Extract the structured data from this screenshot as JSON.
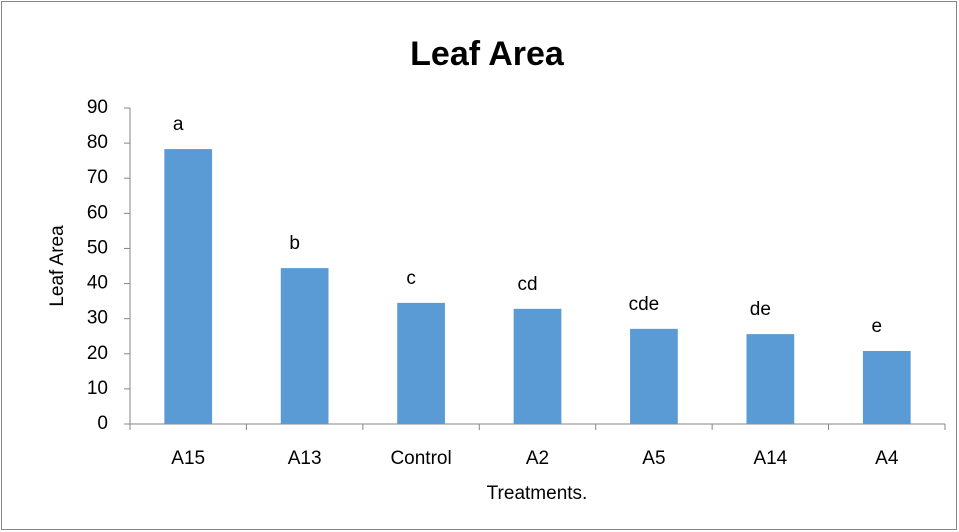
{
  "chart_data": {
    "type": "bar",
    "title": "Leaf Area",
    "x_label": "Treatments.",
    "y_label": "Leaf Area",
    "categories": [
      "A15",
      "A13",
      "Control",
      "A2",
      "A5",
      "A14",
      "A4"
    ],
    "values": [
      78.3,
      44.4,
      34.5,
      32.8,
      27.1,
      25.6,
      20.8
    ],
    "annotations": [
      "a",
      "b",
      "c",
      "cd",
      "cde",
      "de",
      "e"
    ],
    "color": "#5b9bd5",
    "ylim": [
      0,
      90
    ],
    "yticks": [
      0,
      10,
      20,
      30,
      40,
      50,
      60,
      70,
      80,
      90
    ],
    "grid": false
  }
}
